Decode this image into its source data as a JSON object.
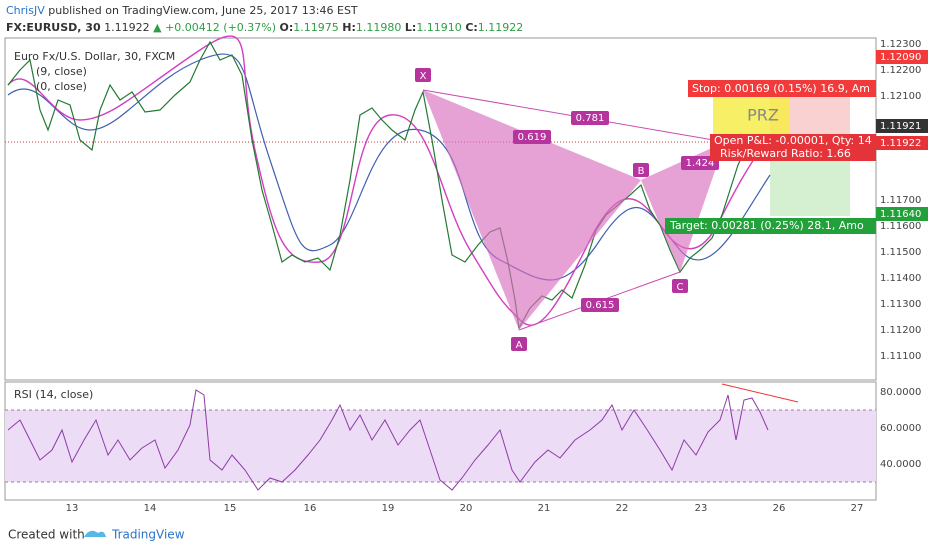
{
  "header": {
    "author": "ChrisJV",
    "published": "published on TradingView.com, June 25, 2017 13:46 EST"
  },
  "quote": {
    "symbol": "FX:EURUSD, 30",
    "last": "1.11922",
    "change": "▲ +0.00412 (+0.37%)",
    "open_label": "O:",
    "open": "1.11975",
    "high_label": "H:",
    "high": "1.11980",
    "low_label": "L:",
    "low": "1.11910",
    "close_label": "C:",
    "close": "1.11922"
  },
  "legend": {
    "instrument": "Euro Fx/U.S. Dollar, 30, FXCM",
    "ma_fast": "(9, close)",
    "ma_slow": "(0, close)"
  },
  "price_axis": [
    "1.12300",
    "1.12200",
    "1.12100",
    "1.11700",
    "1.11600",
    "1.11500",
    "1.11400",
    "1.11300",
    "1.11200",
    "1.11100"
  ],
  "price_badges": {
    "stop_level": "1.12090",
    "current": "1.11921",
    "open_pnl": "1.11922",
    "target_level": "1.11640"
  },
  "pattern": {
    "points": [
      "X",
      "A",
      "B",
      "C"
    ],
    "ratios": [
      "0.781",
      "0.619",
      "1.424",
      "0.615"
    ]
  },
  "position": {
    "zone": "PRZ",
    "stop": "Stop: 0.00169 (0.15%) 16.9, Am",
    "open_pnl": "Open P&L: -0.00001, Qty: 14",
    "risk_reward": "Risk/Reward Ratio: 1.66",
    "target": "Target: 0.00281 (0.25%) 28.1, Amo"
  },
  "rsi": {
    "title": "RSI (14, close)",
    "axis": [
      "80.0000",
      "60.0000",
      "40.0000"
    ]
  },
  "time_axis": [
    "13",
    "14",
    "15",
    "16",
    "19",
    "20",
    "21",
    "22",
    "23",
    "26",
    "27"
  ],
  "footer": {
    "created": "Created with",
    "brand": "TradingView"
  }
}
